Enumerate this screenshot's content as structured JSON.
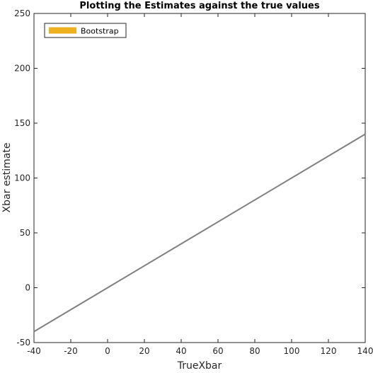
{
  "chart_data": {
    "type": "line",
    "title": "Plotting the Estimates against the true values",
    "xlabel": "TrueXbar",
    "ylabel": "Xbar estimate",
    "xlim": [
      -40,
      140
    ],
    "ylim": [
      -50,
      250
    ],
    "xticks": [
      -40,
      -20,
      0,
      20,
      40,
      60,
      80,
      100,
      120,
      140
    ],
    "yticks": [
      -50,
      0,
      50,
      100,
      150,
      200,
      250
    ],
    "grid": false,
    "legend_position": "top-left",
    "legend": [
      {
        "label": "Bootstrap",
        "color": "#EDB120"
      }
    ],
    "series": [
      {
        "color": "#808080",
        "x": [
          -40,
          140
        ],
        "y": [
          -40,
          140
        ]
      }
    ]
  }
}
